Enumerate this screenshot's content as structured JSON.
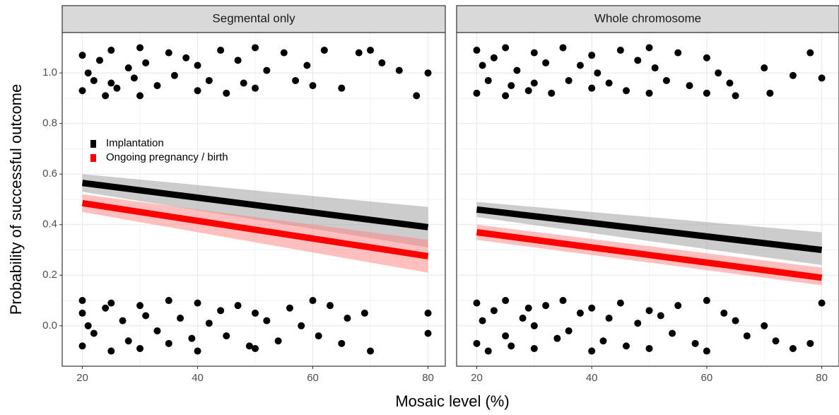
{
  "chart_data": {
    "type": "facet-scatter-fit",
    "xlabel": "Mosaic level (%)",
    "ylabel": "Probability of successful outcome",
    "xlim": [
      16.5,
      83
    ],
    "ylim": [
      -0.16,
      1.16
    ],
    "xticks": [
      20,
      40,
      60,
      80
    ],
    "yticks": [
      {
        "value": 0,
        "label": "0.0"
      },
      0.2,
      0.4,
      0.6,
      0.8,
      {
        "value": 1,
        "label": "1.0"
      }
    ],
    "grid": true,
    "point_color": "#000000",
    "series": [
      {
        "name": "Implantation",
        "color": "#000000",
        "band_color": "#999999"
      },
      {
        "name": "Ongoing pregnancy / birth",
        "color": "#ff0000",
        "band_color": "#ff8080"
      }
    ],
    "fit_x": [
      20,
      80
    ],
    "panels": [
      {
        "title": "Segmental only",
        "fits": [
          {
            "values": [
              0.565,
              0.39
            ],
            "lower": [
              0.53,
              0.31
            ],
            "upper": [
              0.6,
              0.47
            ]
          },
          {
            "values": [
              0.485,
              0.275
            ],
            "lower": [
              0.45,
              0.21
            ],
            "upper": [
              0.52,
              0.34
            ]
          }
        ],
        "points": {
          "x": [
            20,
            20,
            21,
            22,
            23,
            24,
            25,
            25,
            26,
            28,
            29,
            30,
            30,
            31,
            33,
            35,
            36,
            38,
            40,
            40,
            42,
            44,
            45,
            47,
            48,
            50,
            50,
            52,
            55,
            57,
            59,
            60,
            62,
            65,
            68,
            70,
            72,
            75,
            78,
            80,
            20,
            20,
            21,
            22,
            24,
            25,
            25,
            27,
            28,
            30,
            30,
            31,
            33,
            35,
            35,
            37,
            39,
            40,
            40,
            42,
            44,
            45,
            47,
            49,
            50,
            50,
            52,
            54,
            56,
            58,
            60,
            61,
            63,
            65,
            66,
            69,
            70,
            80,
            80,
            20
          ],
          "y": [
            1.07,
            0.93,
            1.0,
            0.97,
            1.05,
            0.91,
            1.09,
            0.96,
            0.94,
            1.02,
            0.98,
            1.1,
            0.91,
            1.04,
            0.95,
            1.08,
            0.99,
            1.06,
            0.93,
            1.03,
            0.97,
            1.09,
            0.92,
            1.05,
            0.96,
            1.1,
            0.94,
            1.01,
            1.08,
            0.97,
            1.03,
            0.95,
            1.09,
            0.94,
            1.08,
            1.09,
            1.04,
            1.01,
            0.91,
            1.0,
            0.05,
            -0.08,
            0.0,
            -0.03,
            0.07,
            -0.1,
            0.09,
            0.02,
            -0.06,
            0.08,
            -0.09,
            0.04,
            -0.02,
            0.1,
            -0.07,
            0.03,
            -0.05,
            0.09,
            -0.1,
            0.01,
            0.06,
            -0.04,
            0.08,
            -0.08,
            0.05,
            -0.09,
            0.02,
            -0.06,
            0.07,
            0.0,
            0.1,
            -0.04,
            0.08,
            -0.07,
            0.03,
            0.05,
            -0.1,
            0.05,
            -0.03,
            0.1
          ]
        }
      },
      {
        "title": "Whole chromosome",
        "fits": [
          {
            "values": [
              0.46,
              0.3
            ],
            "lower": [
              0.43,
              0.24
            ],
            "upper": [
              0.49,
              0.37
            ]
          },
          {
            "values": [
              0.37,
              0.19
            ],
            "lower": [
              0.34,
              0.16
            ],
            "upper": [
              0.4,
              0.23
            ]
          }
        ],
        "points": {
          "x": [
            20,
            20,
            21,
            22,
            23,
            25,
            25,
            26,
            27,
            29,
            30,
            30,
            32,
            33,
            35,
            36,
            38,
            40,
            40,
            41,
            43,
            45,
            46,
            48,
            50,
            50,
            51,
            53,
            55,
            57,
            60,
            60,
            62,
            64,
            65,
            70,
            71,
            75,
            78,
            80,
            20,
            20,
            21,
            22,
            23,
            25,
            25,
            26,
            28,
            29,
            30,
            30,
            32,
            34,
            35,
            36,
            38,
            40,
            40,
            42,
            43,
            45,
            46,
            48,
            50,
            50,
            52,
            54,
            55,
            58,
            60,
            60,
            63,
            65,
            67,
            70,
            72,
            75,
            78,
            80
          ],
          "y": [
            1.09,
            0.92,
            1.03,
            0.97,
            1.06,
            0.91,
            1.1,
            0.95,
            1.01,
            0.93,
            1.08,
            0.96,
            1.04,
            0.92,
            1.1,
            0.97,
            1.03,
            0.94,
            1.07,
            1.0,
            0.96,
            1.09,
            0.93,
            1.05,
            1.1,
            0.92,
            1.02,
            0.97,
            1.08,
            0.95,
            1.06,
            0.92,
            1.0,
            0.96,
            0.91,
            1.02,
            0.92,
            0.99,
            1.08,
            0.98,
            0.09,
            -0.07,
            0.02,
            -0.1,
            0.06,
            -0.04,
            0.1,
            -0.08,
            0.03,
            0.07,
            -0.09,
            0.0,
            0.08,
            -0.05,
            0.1,
            -0.02,
            0.05,
            -0.1,
            0.07,
            -0.06,
            0.03,
            0.09,
            -0.08,
            0.01,
            0.06,
            -0.09,
            0.04,
            -0.03,
            0.08,
            -0.07,
            0.1,
            -0.1,
            0.05,
            0.02,
            -0.04,
            0.0,
            -0.06,
            -0.09,
            -0.07,
            0.09
          ]
        }
      }
    ]
  }
}
